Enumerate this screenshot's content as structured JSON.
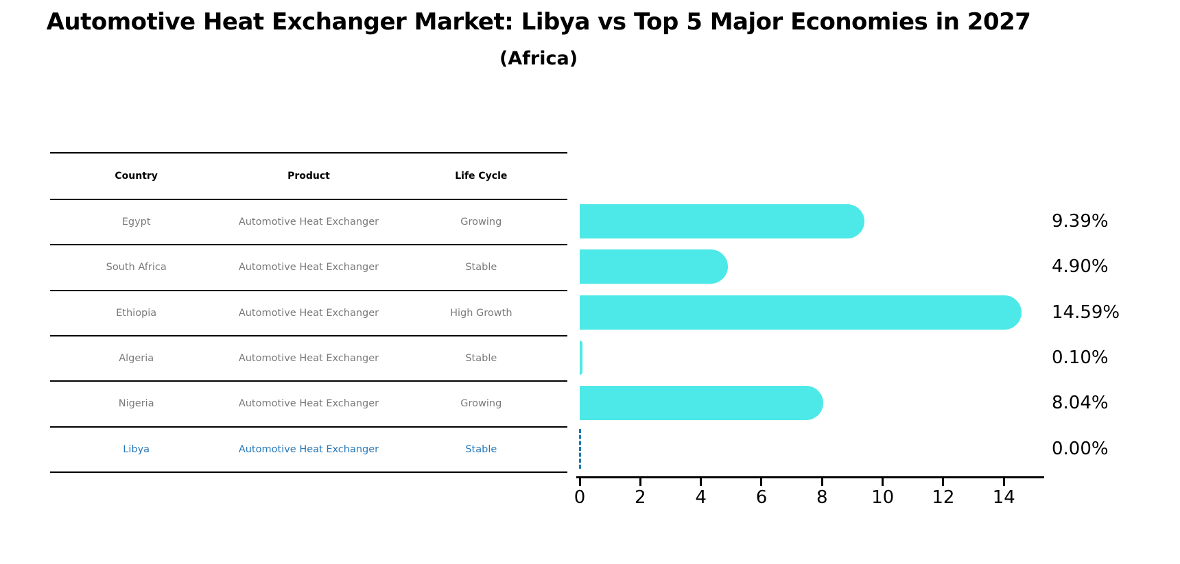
{
  "title": "Automotive Heat Exchanger Market: Libya vs Top 5 Major Economies in 2027",
  "subtitle": "(Africa)",
  "table": {
    "headers": [
      "Country",
      "Product",
      "Life Cycle"
    ],
    "rows": [
      {
        "country": "Egypt",
        "product": "Automotive Heat Exchanger",
        "life_cycle": "Growing",
        "highlighted": false
      },
      {
        "country": "South Africa",
        "product": "Automotive Heat Exchanger",
        "life_cycle": "Stable",
        "highlighted": false
      },
      {
        "country": "Ethiopia",
        "product": "Automotive Heat Exchanger",
        "life_cycle": "High Growth",
        "highlighted": false
      },
      {
        "country": "Algeria",
        "product": "Automotive Heat Exchanger",
        "life_cycle": "Stable",
        "highlighted": false
      },
      {
        "country": "Nigeria",
        "product": "Automotive Heat Exchanger",
        "life_cycle": "Growing",
        "highlighted": false
      },
      {
        "country": "Libya",
        "product": "Automotive Heat Exchanger",
        "life_cycle": "Stable",
        "highlighted": true
      }
    ]
  },
  "chart_data": {
    "type": "bar",
    "orientation": "horizontal",
    "title": "Automotive Heat Exchanger Market: Libya vs Top 5 Major Economies in 2027 (Africa)",
    "categories": [
      "Egypt",
      "South Africa",
      "Ethiopia",
      "Algeria",
      "Nigeria",
      "Libya"
    ],
    "values": [
      9.39,
      4.9,
      14.59,
      0.1,
      8.04,
      0.0
    ],
    "value_labels": [
      "9.39%",
      "4.90%",
      "14.59%",
      "0.10%",
      "8.04%",
      "0.00%"
    ],
    "x_ticks": [
      "0",
      "2",
      "4",
      "6",
      "8",
      "10",
      "12",
      "14"
    ],
    "x_tick_values": [
      0,
      2,
      4,
      6,
      8,
      10,
      12,
      14
    ],
    "xlim": [
      0,
      15.33
    ],
    "xlabel": "",
    "ylabel": "",
    "grid": false,
    "legend_position": "none",
    "bar_color": "#4DE8E8",
    "zero_marker_color": "#1f77b4",
    "highlight_text_color": "#2878b8"
  },
  "colors": {
    "background": "#ffffff",
    "bar": "#4DE8E8",
    "row_text": "#7a7a7a",
    "highlight_text": "#2878b8",
    "axis": "#000000"
  }
}
